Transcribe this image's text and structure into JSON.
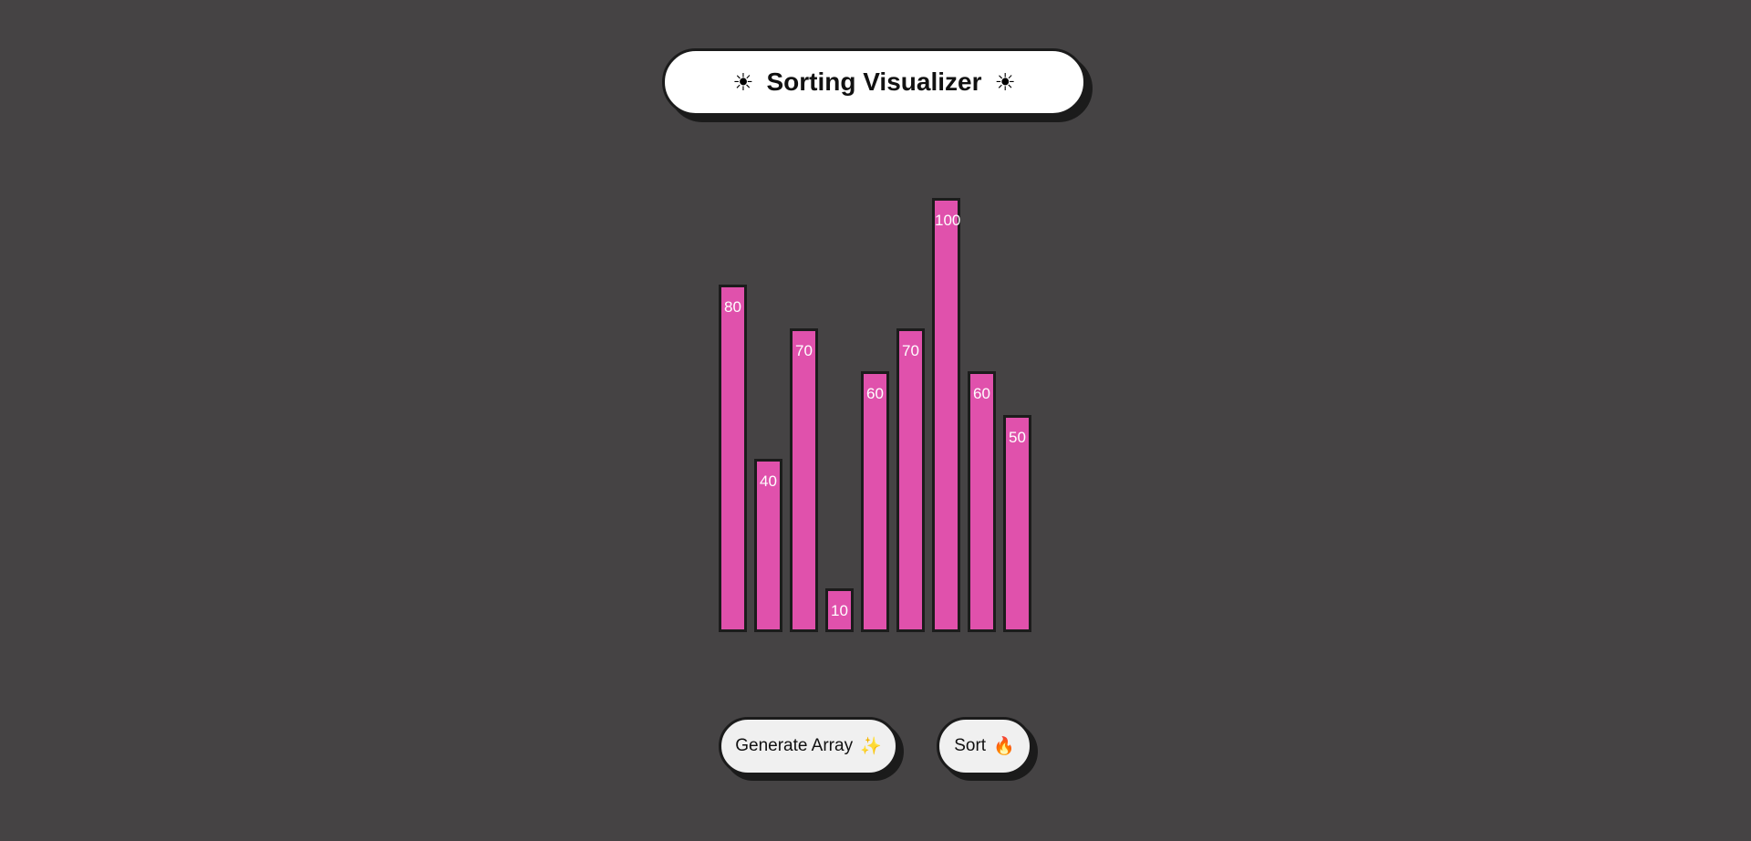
{
  "header": {
    "title": "Sorting Visualizer",
    "left_icon": "☀",
    "right_icon": "☀"
  },
  "bars": {
    "values": [
      80,
      40,
      70,
      10,
      60,
      70,
      100,
      60,
      50
    ],
    "max_value": 100,
    "color": "#e051ac",
    "border_color": "#1c1c1c"
  },
  "controls": {
    "generate_label": "Generate Array",
    "generate_icon": "✨",
    "sort_label": "Sort",
    "sort_icon": "🔥"
  },
  "colors": {
    "background": "#454344",
    "panel": "#ffffff",
    "button": "#f0f0f0"
  }
}
